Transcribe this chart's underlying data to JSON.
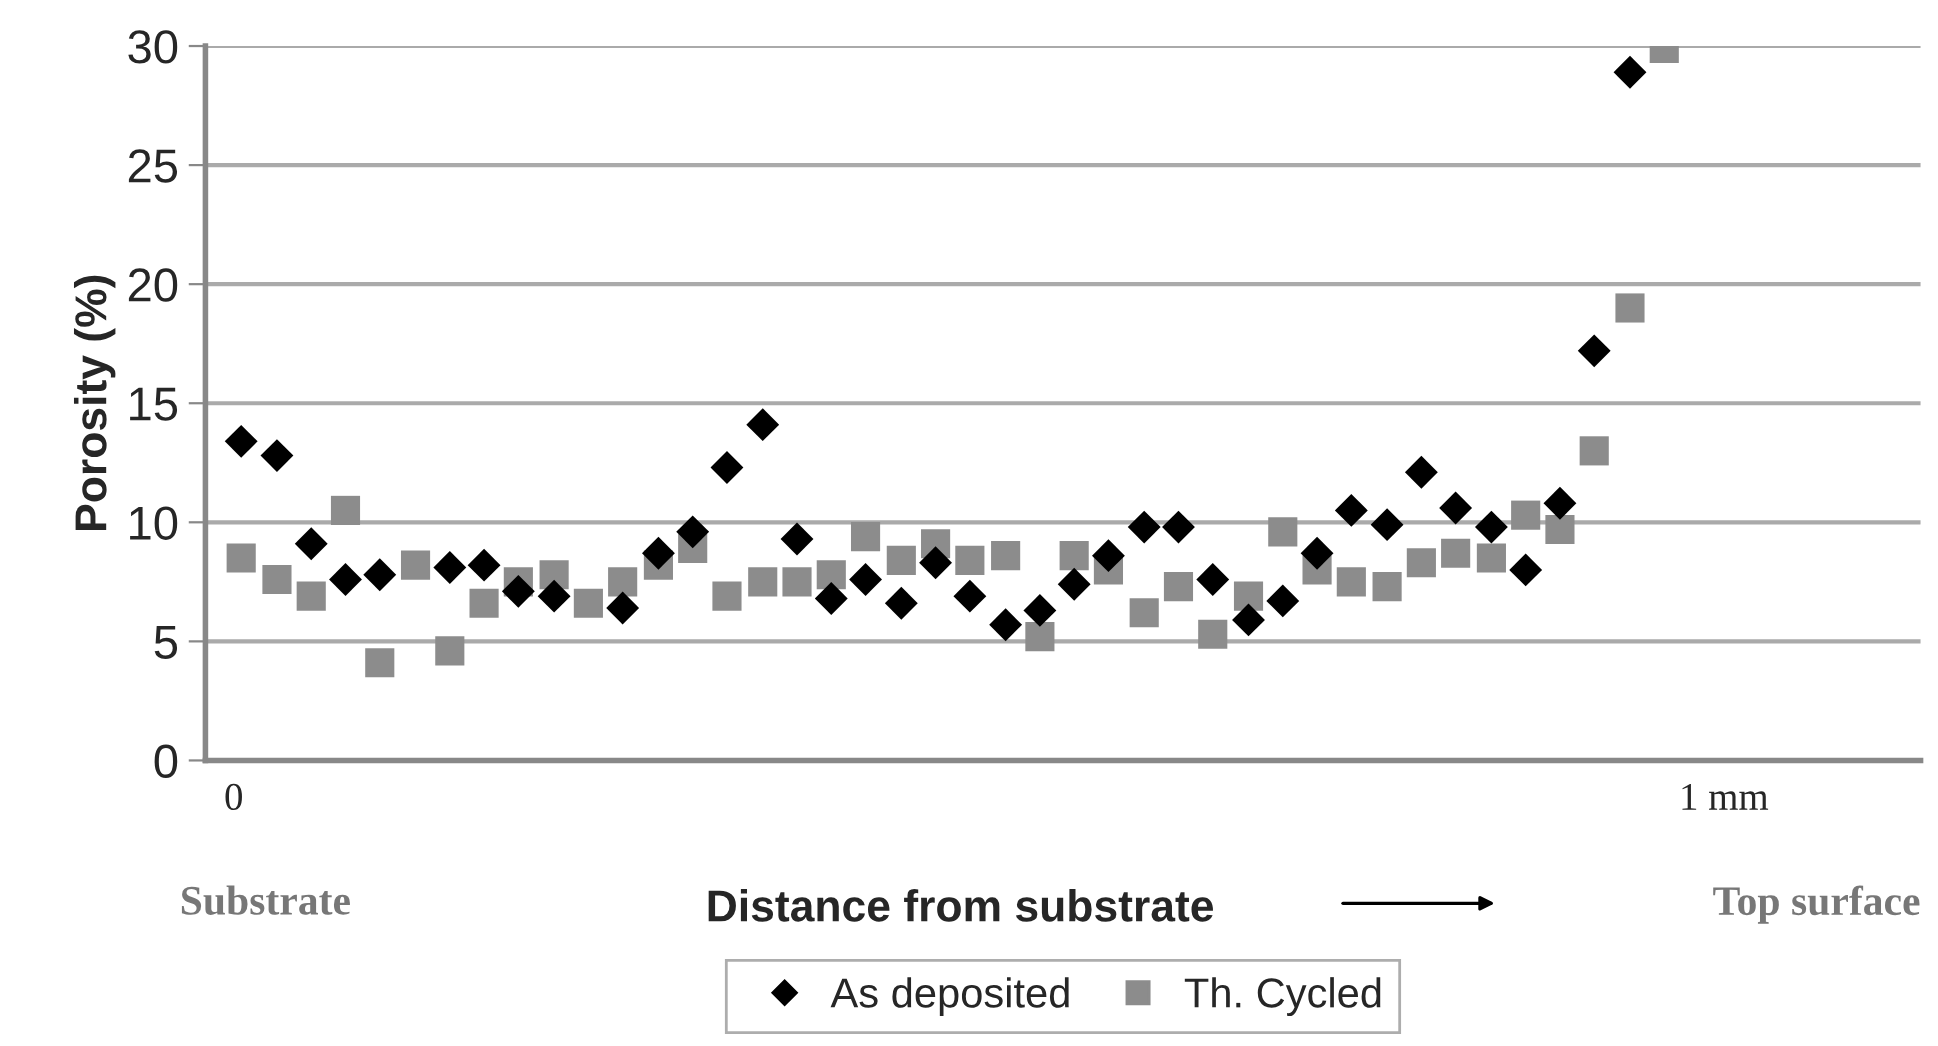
{
  "chart_data": {
    "type": "scatter",
    "xlabel": "Distance from substrate",
    "ylabel": "Porosity (%)",
    "annotations": [
      "Substrate",
      "Top surface"
    ],
    "x": [
      0.005,
      0.029,
      0.052,
      0.075,
      0.098,
      0.122,
      0.145,
      0.168,
      0.191,
      0.215,
      0.238,
      0.261,
      0.285,
      0.308,
      0.331,
      0.355,
      0.378,
      0.401,
      0.424,
      0.448,
      0.471,
      0.494,
      0.518,
      0.541,
      0.564,
      0.587,
      0.611,
      0.634,
      0.657,
      0.681,
      0.704,
      0.727,
      0.75,
      0.774,
      0.797,
      0.82,
      0.844,
      0.867,
      0.89,
      0.913,
      0.937,
      0.96
    ],
    "series": [
      {
        "name": "As deposited",
        "color": "#000000",
        "marker": "diamond",
        "values": [
          13.4,
          12.8,
          9.1,
          7.6,
          7.8,
          null,
          8.1,
          8.2,
          7.1,
          6.9,
          null,
          6.4,
          8.7,
          9.6,
          12.3,
          14.1,
          9.3,
          6.8,
          7.6,
          6.6,
          8.3,
          6.9,
          5.7,
          6.3,
          7.4,
          8.6,
          9.8,
          9.8,
          7.6,
          5.9,
          6.7,
          8.7,
          10.5,
          9.9,
          12.1,
          10.6,
          9.8,
          8.0,
          10.8,
          17.2,
          28.9,
          null
        ]
      },
      {
        "name": "Th. Cycled",
        "color": "#8c8c8c",
        "marker": "square",
        "values": [
          8.5,
          7.6,
          6.9,
          10.5,
          4.1,
          8.2,
          4.6,
          6.6,
          7.5,
          7.8,
          6.6,
          7.5,
          8.2,
          8.9,
          6.9,
          7.5,
          7.5,
          7.8,
          9.4,
          8.4,
          9.1,
          8.4,
          8.6,
          5.2,
          8.6,
          8.0,
          6.2,
          7.3,
          5.3,
          6.9,
          9.6,
          8.0,
          7.5,
          7.3,
          8.3,
          8.7,
          8.5,
          10.3,
          9.7,
          13.0,
          19.0,
          29.9
        ]
      }
    ],
    "xlim": [
      -0.019,
      1.132
    ],
    "xticks": [
      0,
      {
        "value": 1,
        "label": "1 mm"
      }
    ],
    "ylim": [
      0,
      30
    ],
    "yticks": [
      0,
      5,
      10,
      15,
      20,
      25,
      30
    ],
    "grid": "y",
    "legend": "bottom"
  }
}
